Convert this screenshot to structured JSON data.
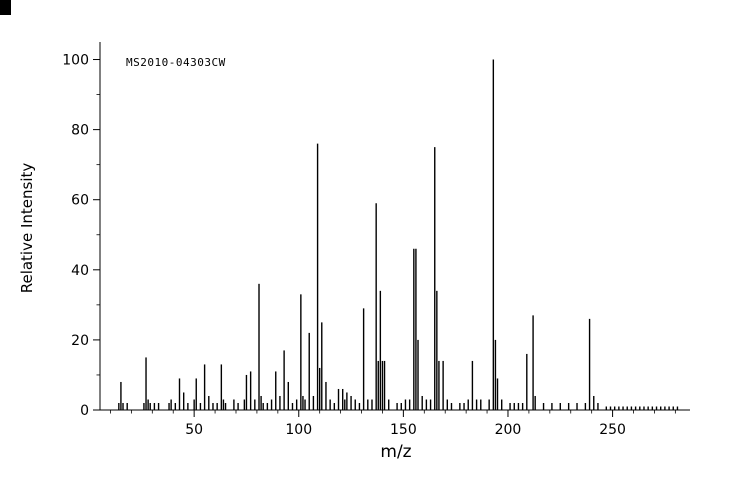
{
  "figure": {
    "watermark": "MS2010-04303CW"
  },
  "chart_data": {
    "type": "bar",
    "title": "",
    "xlabel": "m/z",
    "ylabel": "Relative Intensity",
    "xlim": [
      5,
      287
    ],
    "ylim": [
      0,
      105
    ],
    "grid": false,
    "legend": "none",
    "bar_color": "#000000",
    "x_major_ticks": [
      50,
      100,
      150,
      200,
      250
    ],
    "x_minor_step": 10,
    "y_major_ticks": [
      0,
      20,
      40,
      60,
      80,
      100
    ],
    "y_minor_step": 10,
    "peaks": [
      [
        14,
        2
      ],
      [
        15,
        8
      ],
      [
        16,
        2
      ],
      [
        18,
        2
      ],
      [
        26,
        2
      ],
      [
        27,
        15
      ],
      [
        28,
        3
      ],
      [
        29,
        2
      ],
      [
        31,
        2
      ],
      [
        33,
        2
      ],
      [
        38,
        2
      ],
      [
        39,
        3
      ],
      [
        41,
        2
      ],
      [
        43,
        9
      ],
      [
        45,
        5
      ],
      [
        47,
        2
      ],
      [
        50,
        3
      ],
      [
        51,
        9
      ],
      [
        53,
        2
      ],
      [
        55,
        13
      ],
      [
        57,
        4
      ],
      [
        59,
        2
      ],
      [
        61,
        2
      ],
      [
        63,
        13
      ],
      [
        64,
        3
      ],
      [
        65,
        2
      ],
      [
        69,
        3
      ],
      [
        71,
        2
      ],
      [
        74,
        3
      ],
      [
        75,
        10
      ],
      [
        77,
        11
      ],
      [
        79,
        3
      ],
      [
        81,
        36
      ],
      [
        82,
        4
      ],
      [
        83,
        2
      ],
      [
        85,
        2
      ],
      [
        87,
        3
      ],
      [
        89,
        11
      ],
      [
        91,
        4
      ],
      [
        93,
        17
      ],
      [
        95,
        8
      ],
      [
        97,
        2
      ],
      [
        99,
        3
      ],
      [
        101,
        33
      ],
      [
        102,
        4
      ],
      [
        103,
        3
      ],
      [
        105,
        22
      ],
      [
        107,
        4
      ],
      [
        109,
        76
      ],
      [
        110,
        12
      ],
      [
        111,
        25
      ],
      [
        113,
        8
      ],
      [
        115,
        3
      ],
      [
        117,
        2
      ],
      [
        119,
        6
      ],
      [
        121,
        6
      ],
      [
        122,
        3
      ],
      [
        123,
        5
      ],
      [
        125,
        4
      ],
      [
        127,
        3
      ],
      [
        129,
        2
      ],
      [
        131,
        29
      ],
      [
        133,
        3
      ],
      [
        135,
        3
      ],
      [
        137,
        59
      ],
      [
        138,
        14
      ],
      [
        139,
        34
      ],
      [
        140,
        14
      ],
      [
        141,
        14
      ],
      [
        143,
        3
      ],
      [
        147,
        2
      ],
      [
        149,
        2
      ],
      [
        151,
        3
      ],
      [
        153,
        3
      ],
      [
        155,
        46
      ],
      [
        156,
        46
      ],
      [
        157,
        20
      ],
      [
        159,
        4
      ],
      [
        161,
        3
      ],
      [
        163,
        3
      ],
      [
        165,
        75
      ],
      [
        166,
        34
      ],
      [
        167,
        14
      ],
      [
        169,
        14
      ],
      [
        171,
        3
      ],
      [
        173,
        2
      ],
      [
        177,
        2
      ],
      [
        179,
        2
      ],
      [
        181,
        3
      ],
      [
        183,
        14
      ],
      [
        185,
        3
      ],
      [
        187,
        3
      ],
      [
        191,
        3
      ],
      [
        193,
        100
      ],
      [
        194,
        20
      ],
      [
        195,
        9
      ],
      [
        197,
        3
      ],
      [
        201,
        2
      ],
      [
        203,
        2
      ],
      [
        205,
        2
      ],
      [
        207,
        2
      ],
      [
        209,
        16
      ],
      [
        212,
        27
      ],
      [
        213,
        4
      ],
      [
        217,
        2
      ],
      [
        221,
        2
      ],
      [
        225,
        2
      ],
      [
        229,
        2
      ],
      [
        233,
        2
      ],
      [
        237,
        2
      ],
      [
        239,
        26
      ],
      [
        241,
        4
      ],
      [
        243,
        2
      ],
      [
        247,
        1
      ],
      [
        249,
        1
      ],
      [
        251,
        1
      ],
      [
        253,
        1
      ],
      [
        255,
        1
      ],
      [
        257,
        1
      ],
      [
        259,
        1
      ],
      [
        261,
        1
      ],
      [
        263,
        1
      ],
      [
        265,
        1
      ],
      [
        267,
        1
      ],
      [
        269,
        1
      ],
      [
        271,
        1
      ],
      [
        273,
        1
      ],
      [
        275,
        1
      ],
      [
        277,
        1
      ],
      [
        279,
        1
      ],
      [
        281,
        1
      ]
    ]
  }
}
